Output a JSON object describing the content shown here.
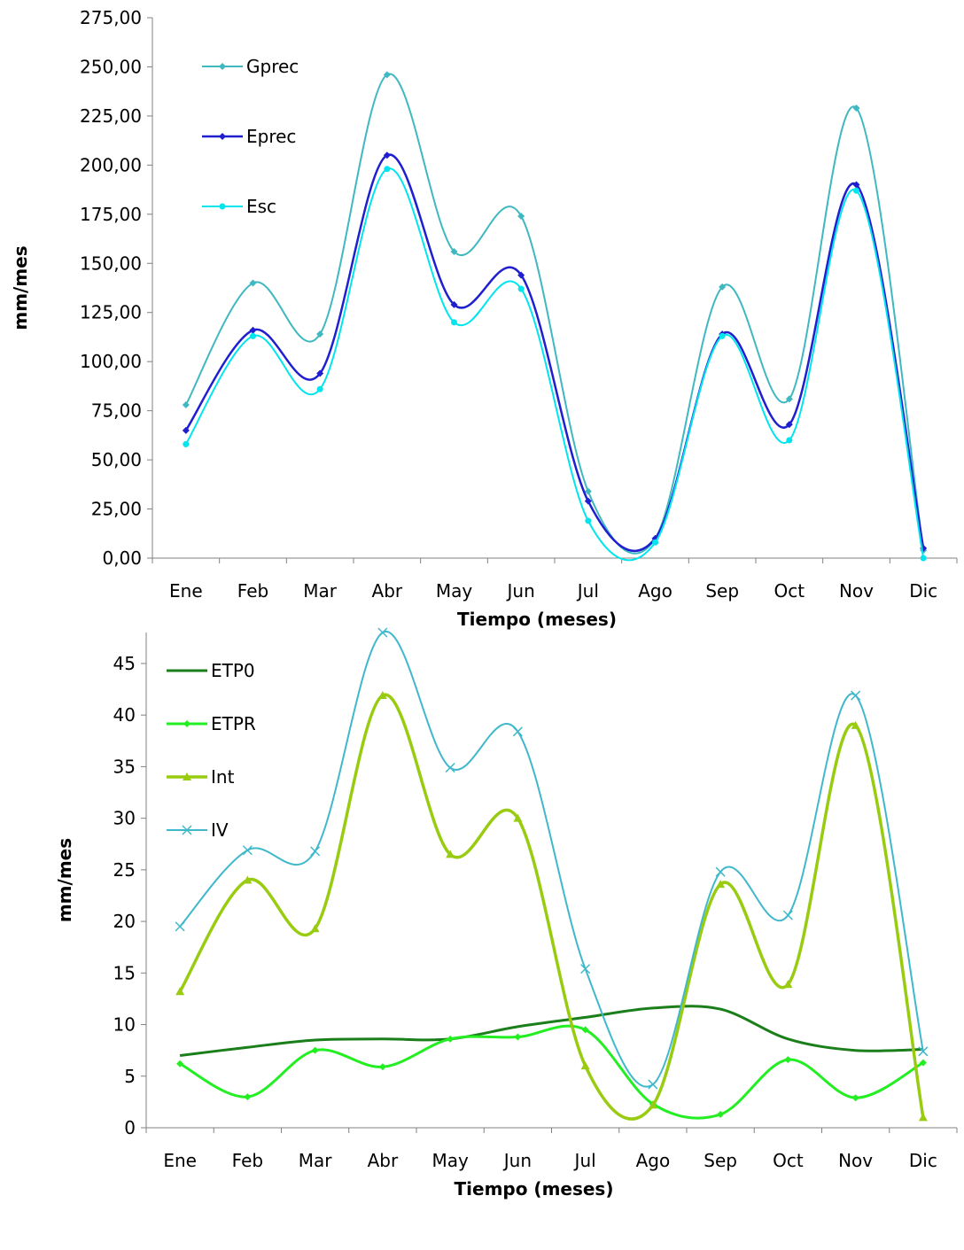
{
  "chart_data": [
    {
      "type": "line",
      "xlabel": "Tiempo (meses)",
      "ylabel": "mm/mes",
      "categories": [
        "Ene",
        "Feb",
        "Mar",
        "Abr",
        "May",
        "Jun",
        "Jul",
        "Ago",
        "Sep",
        "Oct",
        "Nov",
        "Dic"
      ],
      "ylim": [
        0,
        275
      ],
      "yticks": [
        "0,00",
        "25,00",
        "50,00",
        "75,00",
        "100,00",
        "125,00",
        "150,00",
        "175,00",
        "200,00",
        "225,00",
        "250,00",
        "275,00"
      ],
      "legend_position": "top-left",
      "grid": false,
      "series": [
        {
          "name": "Gprec",
          "color": "#3fb8c0",
          "marker": "diamond",
          "values": [
            78,
            140,
            114,
            246,
            156,
            174,
            34,
            10,
            138,
            81,
            229,
            4
          ]
        },
        {
          "name": "Eprec",
          "color": "#1f1fd0",
          "marker": "diamond",
          "values": [
            65,
            116,
            94,
            205,
            129,
            144,
            29,
            10,
            114,
            68,
            190,
            5
          ]
        },
        {
          "name": "Esc",
          "color": "#00e5ee",
          "marker": "circle",
          "values": [
            58,
            113,
            86,
            198,
            120,
            137,
            19,
            8,
            113,
            60,
            187,
            0
          ]
        }
      ]
    },
    {
      "type": "line",
      "xlabel": "Tiempo (meses)",
      "ylabel": "mm/mes",
      "categories": [
        "Ene",
        "Feb",
        "Mar",
        "Abr",
        "May",
        "Jun",
        "Jul",
        "Ago",
        "Sep",
        "Oct",
        "Nov",
        "Dic"
      ],
      "ylim": [
        0,
        48
      ],
      "yticks": [
        "0",
        "5",
        "10",
        "15",
        "20",
        "25",
        "30",
        "35",
        "40",
        "45"
      ],
      "legend_position": "top-left",
      "grid": false,
      "series": [
        {
          "name": "ETP0",
          "color": "#1a7f1a",
          "marker": "none",
          "values": [
            7.0,
            7.8,
            8.5,
            8.6,
            8.6,
            9.8,
            10.7,
            11.6,
            11.5,
            8.6,
            7.5,
            7.6
          ]
        },
        {
          "name": "ETPR",
          "color": "#22ee22",
          "marker": "diamond",
          "values": [
            6.2,
            3.0,
            7.5,
            5.9,
            8.6,
            8.8,
            9.5,
            2.3,
            1.3,
            6.6,
            2.9,
            6.3
          ]
        },
        {
          "name": "Int",
          "color": "#99cc11",
          "marker": "triangle",
          "values": [
            13.2,
            24.0,
            19.3,
            41.9,
            26.5,
            30.0,
            6.0,
            2.2,
            23.6,
            13.9,
            39.0,
            1.0
          ]
        },
        {
          "name": "IV",
          "color": "#40b8cc",
          "marker": "x",
          "values": [
            19.5,
            26.9,
            26.8,
            48.0,
            34.9,
            38.4,
            15.4,
            4.2,
            24.8,
            20.6,
            41.9,
            7.4
          ]
        }
      ]
    }
  ]
}
